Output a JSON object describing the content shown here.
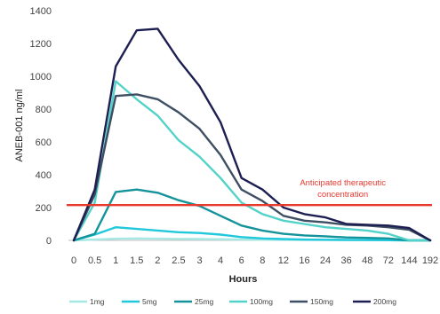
{
  "chart_data": {
    "type": "line",
    "title": "",
    "xlabel": "Hours",
    "ylabel": "ANEB-001 ng/ml",
    "categories": [
      "0",
      "0.5",
      "1",
      "1.5",
      "2",
      "2.5",
      "3",
      "4",
      "6",
      "8",
      "12",
      "16",
      "24",
      "36",
      "48",
      "72",
      "144",
      "192"
    ],
    "ylim": [
      0,
      1400
    ],
    "yticks": [
      0,
      200,
      400,
      600,
      800,
      1000,
      1200,
      1400
    ],
    "grid": false,
    "legend_position": "bottom",
    "series": [
      {
        "name": "1mg",
        "color": "#a6e8e3",
        "values": [
          0,
          5,
          10,
          12,
          10,
          9,
          8,
          7,
          5,
          4,
          3,
          2,
          2,
          1,
          1,
          1,
          0,
          0
        ]
      },
      {
        "name": "5mg",
        "color": "#21c8dc",
        "values": [
          0,
          35,
          80,
          70,
          60,
          50,
          45,
          35,
          20,
          12,
          8,
          5,
          4,
          3,
          2,
          1,
          0,
          0
        ]
      },
      {
        "name": "25mg",
        "color": "#14939a",
        "values": [
          0,
          40,
          295,
          310,
          290,
          245,
          210,
          150,
          90,
          60,
          40,
          30,
          25,
          18,
          15,
          12,
          0,
          0
        ]
      },
      {
        "name": "100mg",
        "color": "#52d2c8",
        "values": [
          0,
          230,
          970,
          860,
          760,
          610,
          510,
          380,
          230,
          160,
          120,
          100,
          80,
          70,
          60,
          40,
          0,
          0
        ]
      },
      {
        "name": "150mg",
        "color": "#3f4f63",
        "values": [
          0,
          280,
          880,
          890,
          860,
          780,
          680,
          520,
          310,
          240,
          150,
          120,
          110,
          95,
          90,
          80,
          65,
          0
        ]
      },
      {
        "name": "200mg",
        "color": "#1d1f52",
        "values": [
          0,
          310,
          1060,
          1280,
          1290,
          1100,
          940,
          720,
          380,
          310,
          200,
          160,
          140,
          100,
          95,
          90,
          75,
          0
        ]
      }
    ],
    "reference_line": {
      "value": 215,
      "color": "#e8392f",
      "label_line1": "Anticipated therapeutic",
      "label_line2": "concentration"
    }
  }
}
